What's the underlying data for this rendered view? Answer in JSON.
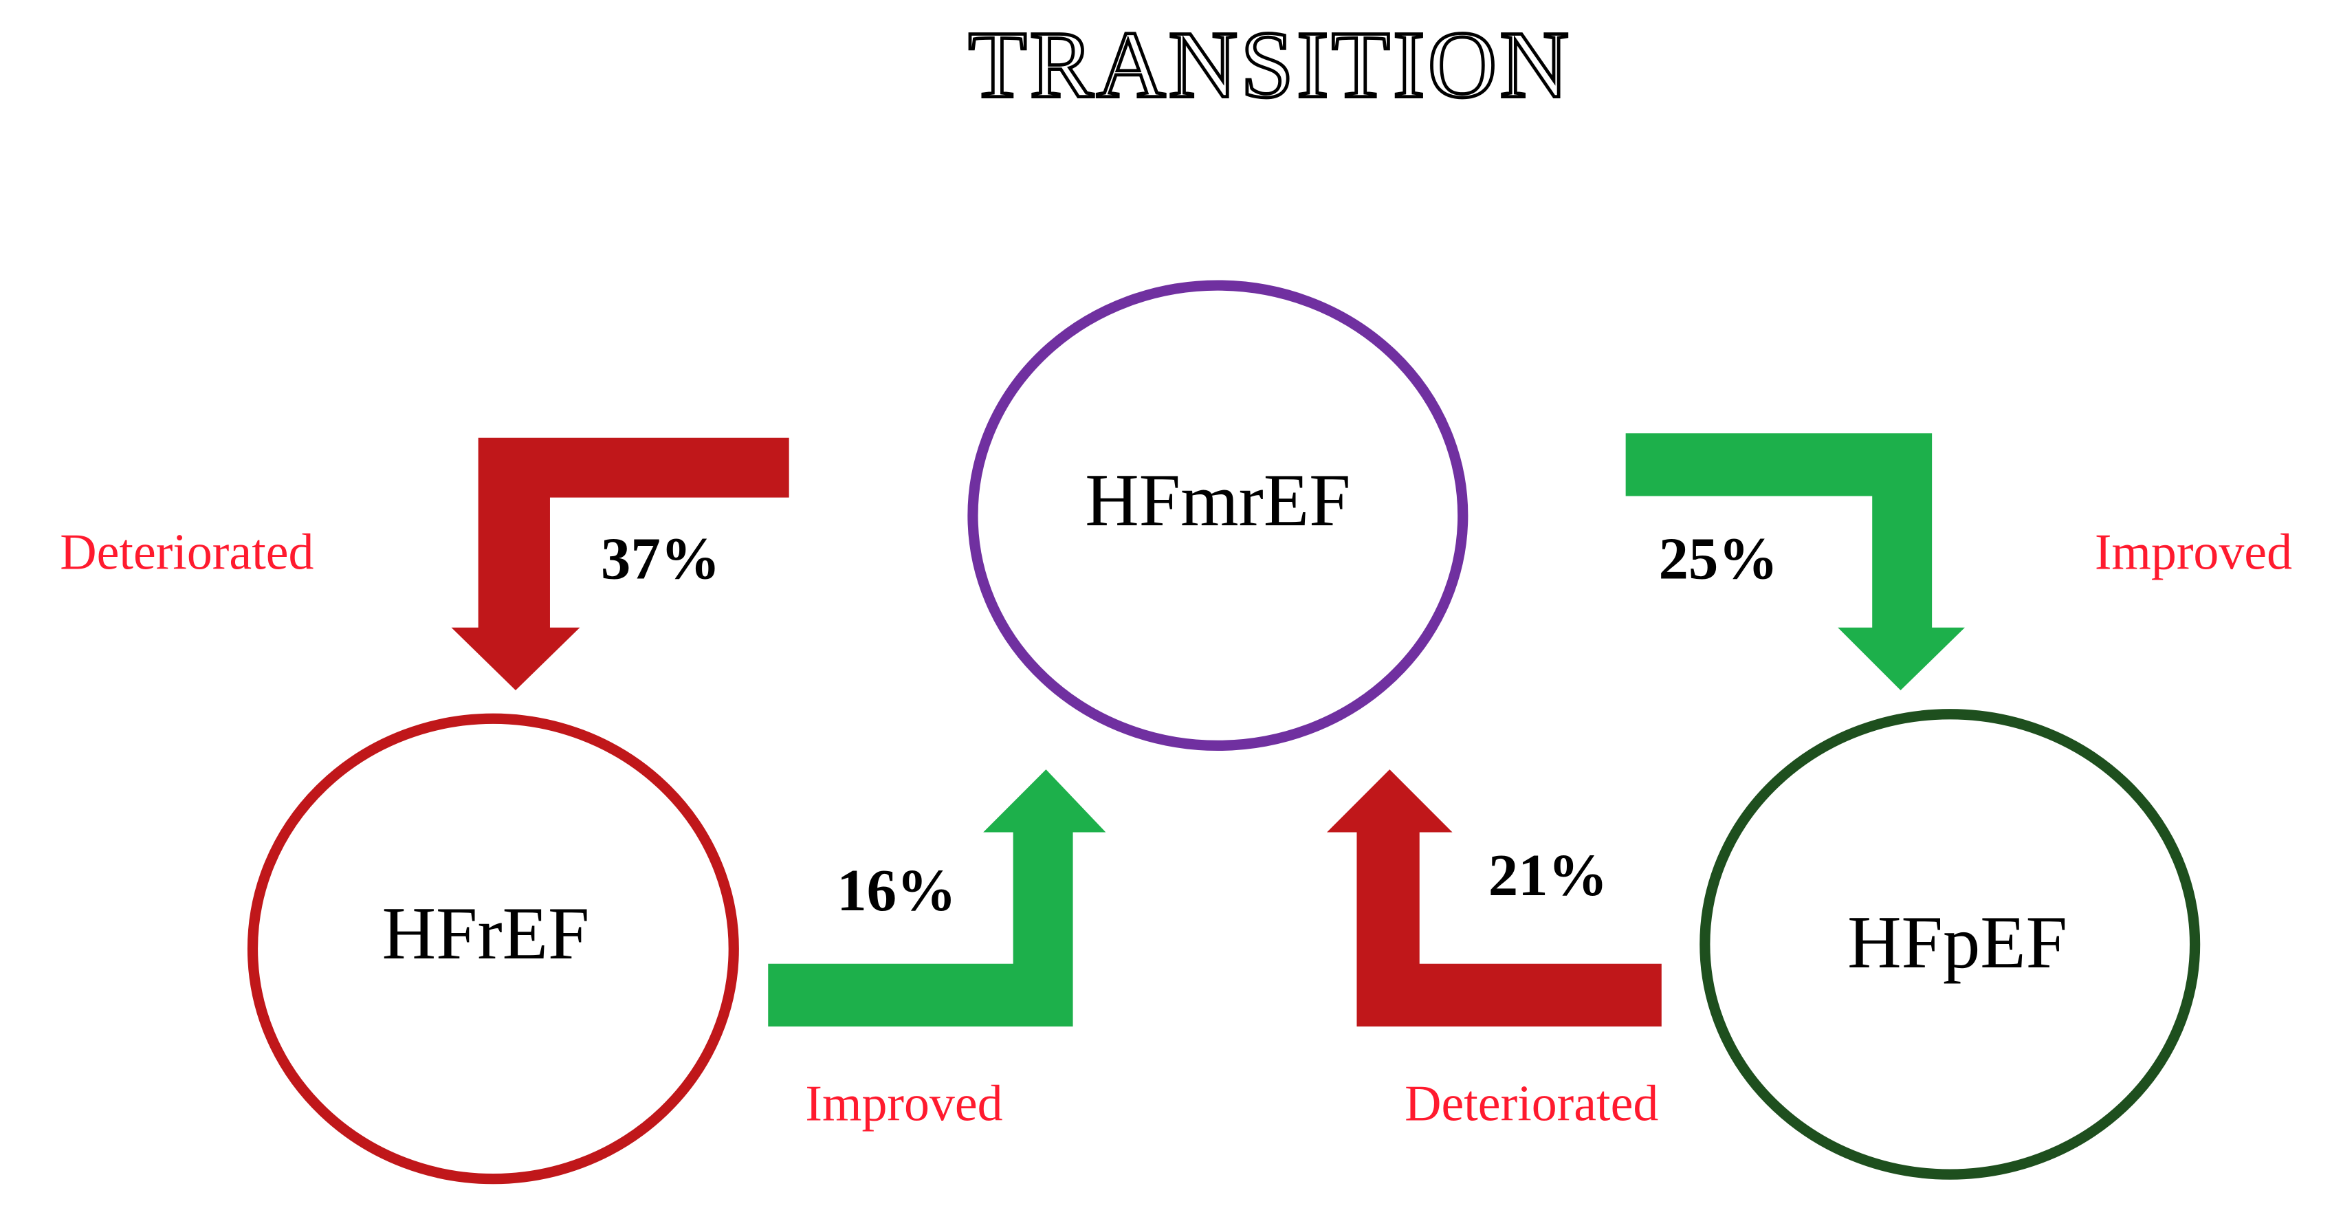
{
  "title": "TRANSITION",
  "nodes": [
    {
      "label": "HFmrEF"
    },
    {
      "label": "HFrEF"
    },
    {
      "label": "HFpEF"
    }
  ],
  "transitions": [
    {
      "percent": "37%",
      "label": "Deteriorated"
    },
    {
      "percent": "25%",
      "label": "Improved"
    },
    {
      "percent": "16%",
      "label": "Improved"
    },
    {
      "percent": "21%",
      "label": "Deteriorated"
    }
  ]
}
